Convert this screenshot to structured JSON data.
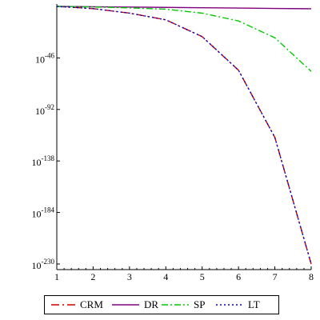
{
  "chart_data": {
    "type": "line",
    "y_scale": "log10",
    "x": [
      1,
      2,
      3,
      4,
      5,
      6,
      7,
      8
    ],
    "xlim": [
      1,
      8
    ],
    "x_ticks": [
      "1",
      "2",
      "3",
      "4",
      "5",
      "6",
      "7",
      "8"
    ],
    "ylim_exp": [
      -235,
      0
    ],
    "y_ticks": [
      {
        "exp": -46,
        "base": "10",
        "sup": "-46"
      },
      {
        "exp": -92,
        "base": "10",
        "sup": "-92"
      },
      {
        "exp": -138,
        "base": "10",
        "sup": "-138"
      },
      {
        "exp": -184,
        "base": "10",
        "sup": "-184"
      },
      {
        "exp": -230,
        "base": "10",
        "sup": "-230"
      }
    ],
    "grid": false,
    "legend_position": "bottom",
    "series": [
      {
        "name": "CRM",
        "color": "#cc0000",
        "dash": "dash-dot",
        "log10_values": [
          0,
          -2,
          -6,
          -12,
          -27,
          -57,
          -117,
          -230
        ]
      },
      {
        "name": "DR",
        "color": "#800080",
        "dash": "solid",
        "log10_values": [
          0,
          -0.3,
          -0.6,
          -0.9,
          -1.2,
          -1.5,
          -1.8,
          -2.1
        ]
      },
      {
        "name": "SP",
        "color": "#00cc00",
        "dash": "dash-dot-long",
        "log10_values": [
          0,
          -0.5,
          -1.3,
          -2.5,
          -6,
          -13,
          -28,
          -58
        ]
      },
      {
        "name": "LT",
        "color": "#0000cc",
        "dash": "dotted",
        "log10_values": [
          0,
          -2,
          -6,
          -12,
          -27,
          -57,
          -117,
          -230
        ]
      }
    ]
  }
}
